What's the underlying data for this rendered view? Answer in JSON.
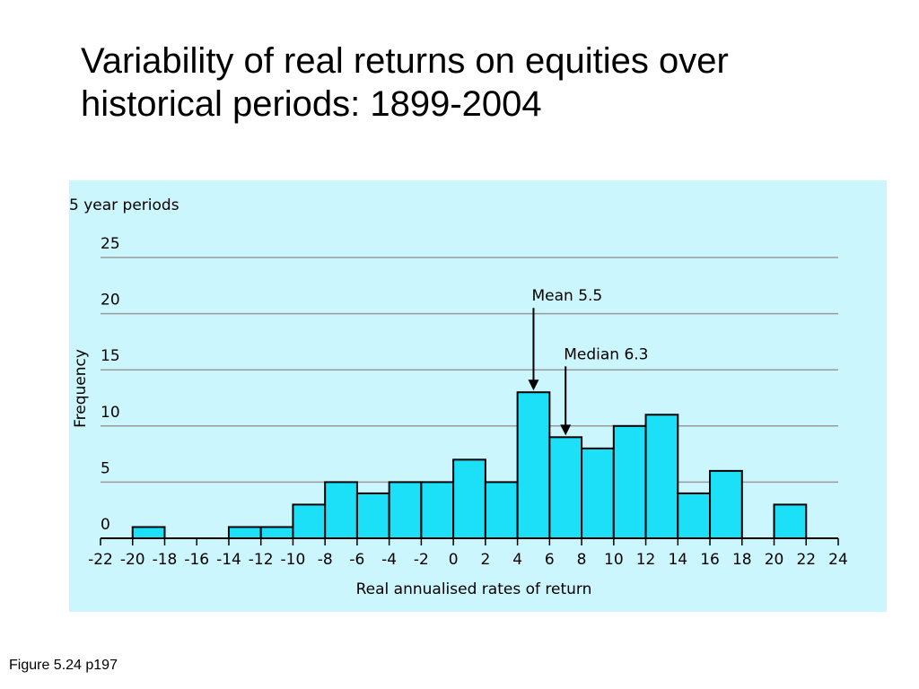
{
  "slide": {
    "title_line1": "Variability of real returns on equities over",
    "title_line2": "historical periods: 1899-2004",
    "caption": "Figure 5.24 p197"
  },
  "colors": {
    "panel_background": "#ccf6fd",
    "bar_fill": "#1ce0f8",
    "bar_stroke": "#000000",
    "grid": "#9a9a9a"
  },
  "chart_data": {
    "type": "bar",
    "title": "",
    "corner_label": "5 year periods",
    "xlabel": "Real annualised rates of return",
    "ylabel": "Frequency",
    "xlim": [
      -22,
      24
    ],
    "ylim": [
      0,
      25
    ],
    "x_ticks": [
      "-22",
      "-20",
      "-18",
      "-16",
      "-14",
      "-12",
      "-10",
      "-8",
      "-6",
      "-4",
      "-2",
      "0",
      "2",
      "4",
      "6",
      "8",
      "10",
      "12",
      "14",
      "16",
      "18",
      "20",
      "22",
      "24"
    ],
    "y_ticks": [
      "0",
      "5",
      "10",
      "15",
      "20",
      "25"
    ],
    "grid": true,
    "bins": [
      {
        "from": -20,
        "to": -18,
        "value": 1
      },
      {
        "from": -14,
        "to": -12,
        "value": 1
      },
      {
        "from": -12,
        "to": -10,
        "value": 1
      },
      {
        "from": -10,
        "to": -8,
        "value": 3
      },
      {
        "from": -8,
        "to": -6,
        "value": 5
      },
      {
        "from": -6,
        "to": -4,
        "value": 4
      },
      {
        "from": -4,
        "to": -2,
        "value": 5
      },
      {
        "from": -2,
        "to": 0,
        "value": 5
      },
      {
        "from": 0,
        "to": 2,
        "value": 7
      },
      {
        "from": 2,
        "to": 4,
        "value": 5
      },
      {
        "from": 4,
        "to": 6,
        "value": 13
      },
      {
        "from": 6,
        "to": 8,
        "value": 9
      },
      {
        "from": 8,
        "to": 10,
        "value": 8
      },
      {
        "from": 10,
        "to": 12,
        "value": 10
      },
      {
        "from": 12,
        "to": 14,
        "value": 11
      },
      {
        "from": 14,
        "to": 16,
        "value": 4
      },
      {
        "from": 16,
        "to": 18,
        "value": 6
      },
      {
        "from": 20,
        "to": 22,
        "value": 3
      }
    ],
    "annotations": [
      {
        "label": "Mean 5.5",
        "x": 5,
        "y": 13
      },
      {
        "label": "Median 6.3",
        "x": 7,
        "y": 9
      }
    ]
  }
}
